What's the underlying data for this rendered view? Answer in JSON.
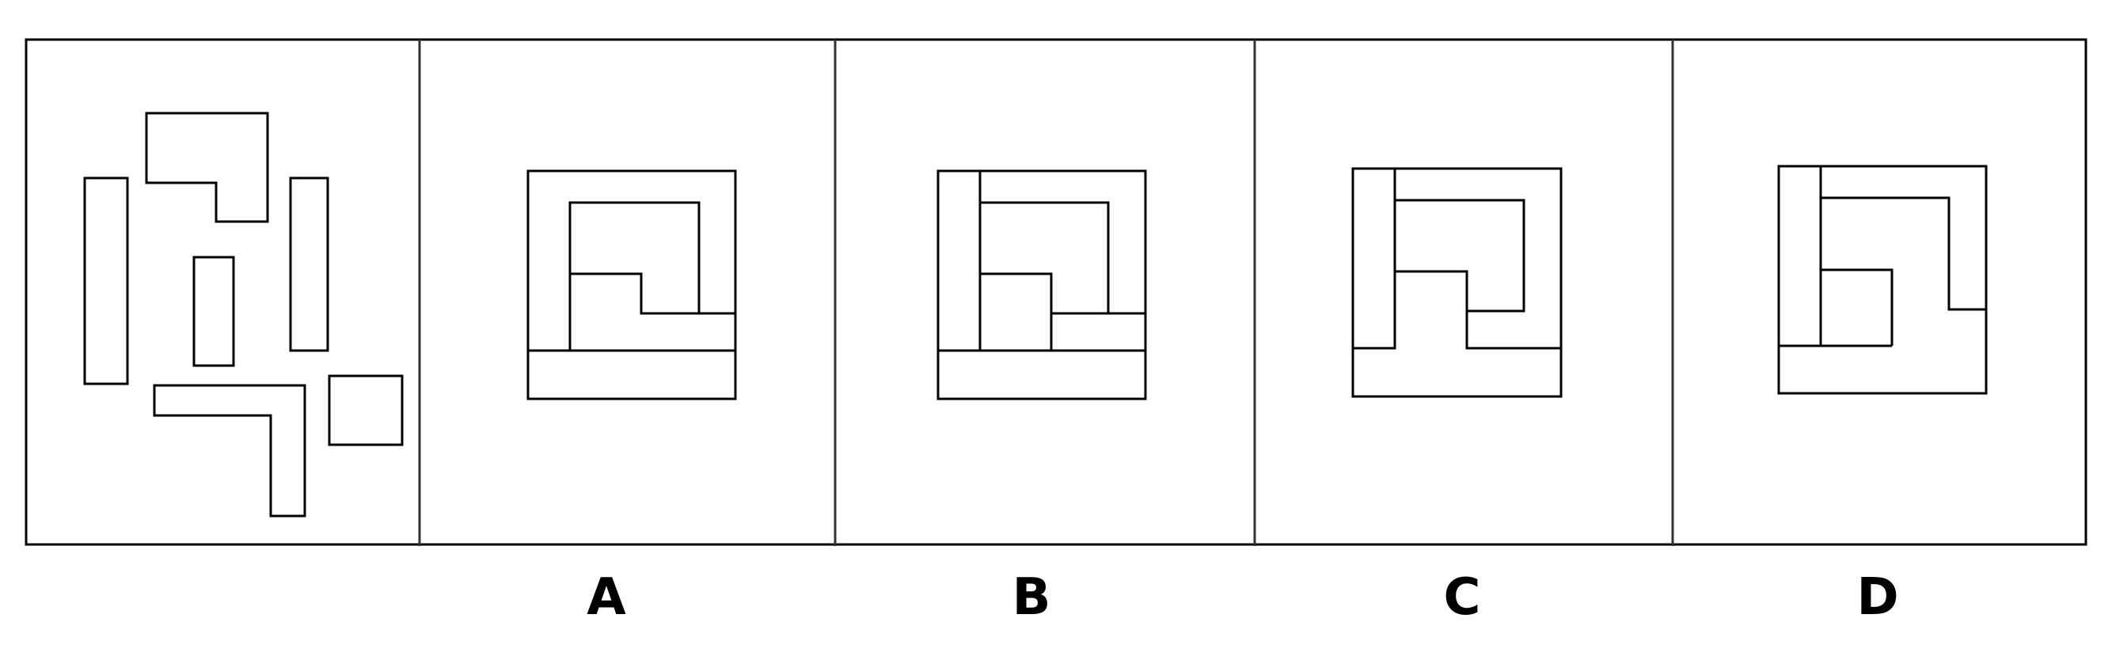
{
  "options": [
    {
      "key": "A",
      "label": "A"
    },
    {
      "key": "B",
      "label": "B"
    },
    {
      "key": "C",
      "label": "C"
    },
    {
      "key": "D",
      "label": "D"
    }
  ],
  "colors": {
    "stroke": "#000000",
    "divider": "#333333",
    "background": "#ffffff"
  }
}
